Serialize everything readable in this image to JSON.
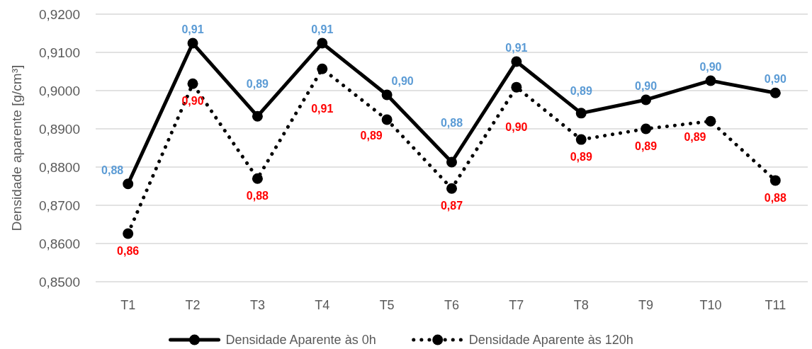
{
  "chart_data": {
    "type": "line",
    "ylabel": "Densidade aparente [g/cm³]",
    "categories": [
      "T1",
      "T2",
      "T3",
      "T4",
      "T5",
      "T6",
      "T7",
      "T8",
      "T9",
      "T10",
      "T11"
    ],
    "series": [
      {
        "name": "Densidade Aparente às 0h",
        "color": "#000000",
        "line_style": "solid",
        "values": [
          0.8756,
          0.9124,
          0.8933,
          0.9124,
          0.8989,
          0.8813,
          0.9076,
          0.8941,
          0.8976,
          0.9026,
          0.8994
        ],
        "value_labels": [
          "0,88",
          "0,91",
          "0,89",
          "0,91",
          "0,90",
          "0,88",
          "0,91",
          "0,89",
          "0,90",
          "0,90",
          "0,90"
        ]
      },
      {
        "name": "Densidade Aparente às 120h",
        "color": "#000000",
        "line_style": "dotted",
        "values": [
          0.8626,
          0.9018,
          0.877,
          0.9057,
          0.8924,
          0.8744,
          0.9009,
          0.8872,
          0.89,
          0.892,
          0.8765
        ],
        "value_labels": [
          "0,86",
          "0,90",
          "0,88",
          "0,91",
          "0,89",
          "0,87",
          "0,90",
          "0,89",
          "0,89",
          "0,89",
          "0,88"
        ]
      }
    ],
    "ylim": [
      0.85,
      0.92
    ],
    "yticks": [
      {
        "value": 0.85,
        "label": "0,8500"
      },
      {
        "value": 0.86,
        "label": "0,8600"
      },
      {
        "value": 0.87,
        "label": "0,8700"
      },
      {
        "value": 0.88,
        "label": "0,8800"
      },
      {
        "value": 0.89,
        "label": "0,8900"
      },
      {
        "value": 0.9,
        "label": "0,9000"
      },
      {
        "value": 0.91,
        "label": "0,9100"
      },
      {
        "value": 0.92,
        "label": "0,9200"
      }
    ],
    "grid": "y",
    "legend": "bottom",
    "marker": "circle"
  }
}
